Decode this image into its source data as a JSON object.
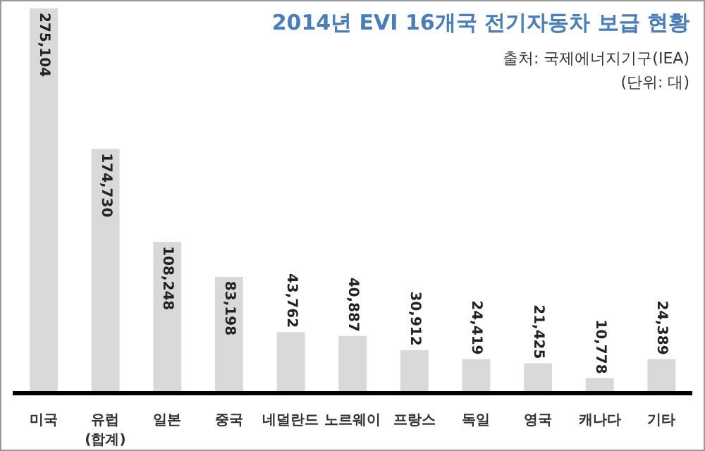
{
  "chart_data": {
    "type": "bar",
    "title": "2014년 EVI 16개국 전기자동차 보급 현황",
    "annotations": [
      "출처: 국제에너지기구(IEA)",
      "(단위: 대)"
    ],
    "categories": [
      "미국",
      "유럽\n(합계)",
      "일본",
      "중국",
      "네덜란드",
      "노르웨이",
      "프랑스",
      "독일",
      "영국",
      "캐나다",
      "기타"
    ],
    "values": [
      275104,
      174730,
      108248,
      83198,
      43762,
      40887,
      30912,
      24419,
      21425,
      10778,
      24389
    ],
    "value_labels": [
      "275,104",
      "174,730",
      "108,248",
      "83,198",
      "43,762",
      "40,887",
      "30,912",
      "24,419",
      "21,425",
      "10,778",
      "24,389"
    ],
    "color": "#d9d9d9",
    "grid": false,
    "legend": false
  }
}
